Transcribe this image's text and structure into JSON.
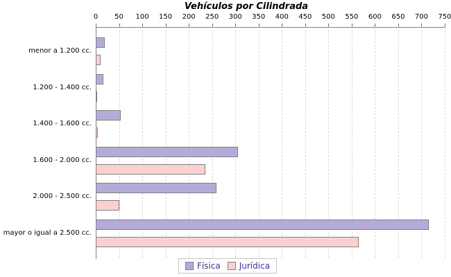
{
  "chart_data": {
    "type": "bar",
    "orientation": "horizontal",
    "title": "Vehículos por Cilindrada",
    "categories": [
      "menor a 1.200 cc.",
      "1.200 - 1.400 cc.",
      "1.400 - 1.600 cc.",
      "1.600 - 2.000 cc.",
      "2.000 - 2.500 cc.",
      "mayor o igual a 2.500 cc."
    ],
    "series": [
      {
        "name": "Física",
        "color": "#b5abd8",
        "values": [
          20,
          17,
          54,
          305,
          260,
          715
        ]
      },
      {
        "name": "Jurídica",
        "color": "#fcd0d0",
        "values": [
          11,
          3,
          5,
          235,
          50,
          565
        ]
      }
    ],
    "xlabel": "",
    "ylabel": "",
    "xlim": [
      0,
      750
    ],
    "xtick_step": 50,
    "grid": "vertical-dashed",
    "legend_position": "bottom-center",
    "colors": {
      "bar_border": "#808080",
      "axis": "#808080",
      "gridline": "#d8d8d8",
      "tick_text": "#000000",
      "category_text": "#000000",
      "title_text": "#000000",
      "legend_text": "#4a2d8e",
      "legend_border": "#c4c4c4",
      "background": "#ffffff"
    }
  }
}
